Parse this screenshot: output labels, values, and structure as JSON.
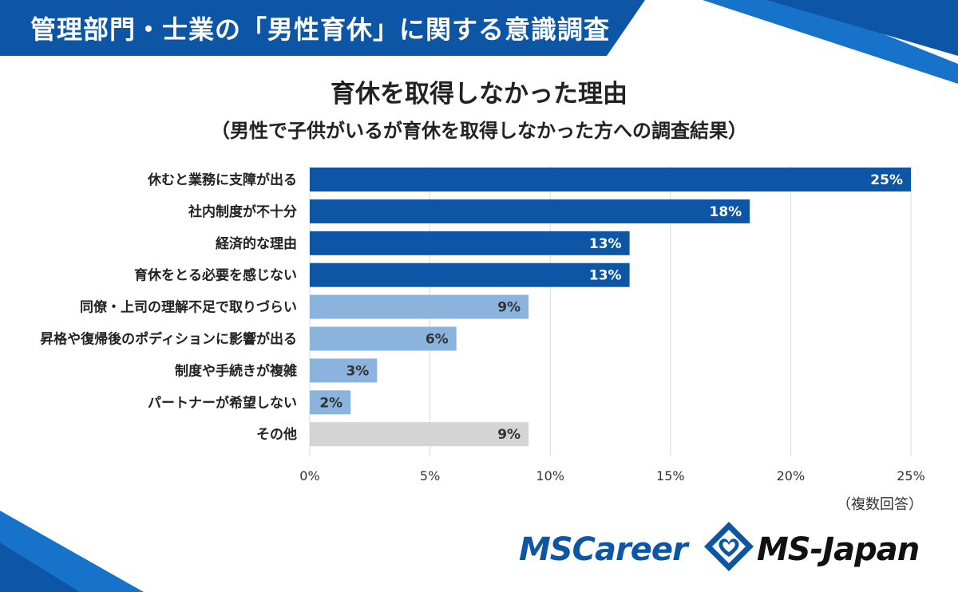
{
  "header": {
    "title": "管理部門・士業の「男性育休」に関する意識調査"
  },
  "chart_data": {
    "type": "bar",
    "orientation": "horizontal",
    "title": "育休を取得しなかった理由",
    "subtitle": "（男性で子供がいるが育休を取得しなかった方への調査結果）",
    "categories": [
      "休むと業務に支障が出る",
      "社内制度が不十分",
      "経済的な理由",
      "育休をとる必要を感じない",
      "同僚・上司の理解不足で取りづらい",
      "昇格や復帰後のポディションに影響が出る",
      "制度や手続きが複雑",
      "パートナーが希望しない",
      "その他"
    ],
    "values": [
      25,
      18.3,
      13.3,
      13.3,
      9.1,
      6.1,
      2.8,
      1.7,
      9.1
    ],
    "data_labels": [
      "25%",
      "18%",
      "13%",
      "13%",
      "9%",
      "6%",
      "3%",
      "2%",
      "9%"
    ],
    "bar_colors": [
      "#0d56a6",
      "#0d56a6",
      "#0d56a6",
      "#0d56a6",
      "#8ab4dd",
      "#8ab4dd",
      "#8ab4dd",
      "#8ab4dd",
      "#d4d4d4"
    ],
    "label_colors": [
      "#ffffff",
      "#ffffff",
      "#ffffff",
      "#ffffff",
      "#333333",
      "#333333",
      "#333333",
      "#333333",
      "#333333"
    ],
    "x_ticks": [
      "0%",
      "5%",
      "10%",
      "15%",
      "20%",
      "25%"
    ],
    "xlim": [
      0,
      25
    ],
    "grid": true,
    "note": "（複数回答）"
  },
  "logos": {
    "left": "MSCareer",
    "right": "MS-Japan"
  },
  "colors": {
    "brand_blue": "#0d56a6",
    "light_blue": "#8ab4dd",
    "gray": "#d4d4d4"
  }
}
